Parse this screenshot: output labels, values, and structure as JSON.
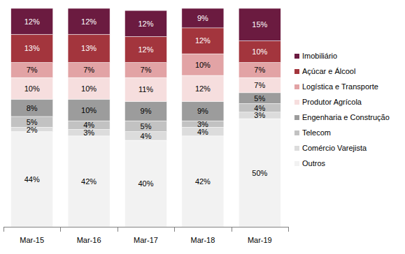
{
  "chart_data": {
    "type": "bar",
    "stacked": true,
    "data_labels": true,
    "tick_labels": "x",
    "legend": "right",
    "categories": [
      "Mar-15",
      "Mar-16",
      "Mar-17",
      "Mar-18",
      "Mar-19"
    ],
    "ylim": [
      0,
      101
    ],
    "series": [
      {
        "name": "Outros",
        "color": "#f2f2f2",
        "values": [
          44,
          42,
          40,
          42,
          50
        ],
        "value_labels": [
          "44%",
          "42%",
          "40%",
          "42%",
          "50%"
        ]
      },
      {
        "name": "Comércio Varejista",
        "color": "#dcdcdc",
        "values": [
          2,
          3,
          4,
          4,
          3
        ],
        "value_labels": [
          "2%",
          "3%",
          "4%",
          "4%",
          "3%"
        ]
      },
      {
        "name": "Telecom",
        "color": "#c2c2c2",
        "values": [
          5,
          4,
          5,
          3,
          4
        ],
        "value_labels": [
          "5%",
          "4%",
          "5%",
          "3%",
          "4%"
        ]
      },
      {
        "name": "Engenharia e Construção",
        "color": "#9c9c9c",
        "values": [
          8,
          10,
          9,
          9,
          5
        ],
        "value_labels": [
          "8%",
          "10%",
          "9%",
          "9%",
          "5%"
        ]
      },
      {
        "name": "Produtor Agrícola",
        "color": "#f6dede",
        "values": [
          10,
          10,
          11,
          12,
          7
        ],
        "value_labels": [
          "10%",
          "10%",
          "11%",
          "12%",
          "7%"
        ]
      },
      {
        "name": "Logística e Transporte",
        "color": "#e2a3a5",
        "values": [
          7,
          7,
          7,
          10,
          7
        ],
        "value_labels": [
          "7%",
          "7%",
          "7%",
          "10%",
          "7%"
        ]
      },
      {
        "name": "Açúcar e Álcool",
        "color": "#a3353d",
        "values": [
          13,
          13,
          12,
          12,
          10
        ],
        "value_labels": [
          "13%",
          "13%",
          "12%",
          "12%",
          "10%"
        ]
      },
      {
        "name": "Imobiliário",
        "color": "#6b1b40",
        "values": [
          12,
          12,
          12,
          9,
          15
        ],
        "value_labels": [
          "12%",
          "12%",
          "12%",
          "9%",
          "15%"
        ]
      }
    ]
  }
}
